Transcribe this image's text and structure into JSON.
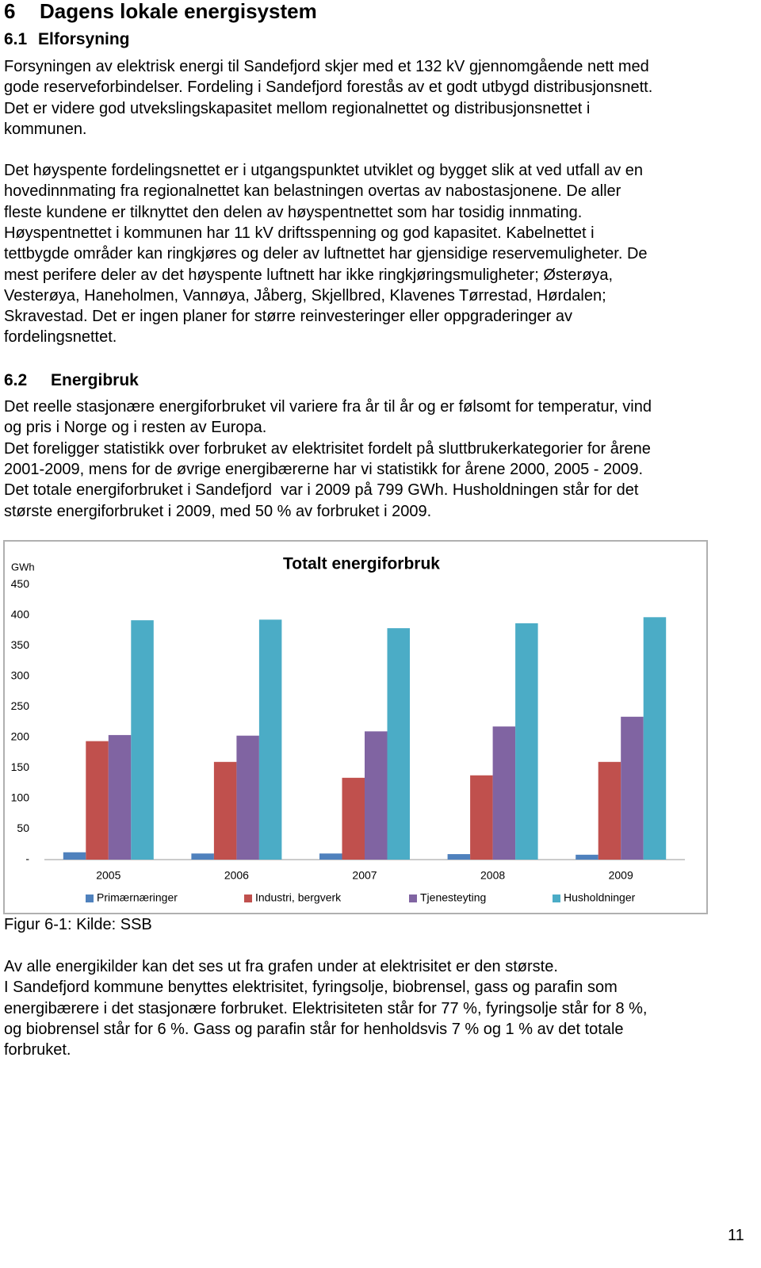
{
  "heading": {
    "number": "6",
    "title": "Dagens lokale energisystem"
  },
  "section_1": {
    "number": "6.1",
    "title": "Elforsyning"
  },
  "paragraphs_1": [
    [
      "Forsyningen av elektrisk energi til Sandefjord skjer med et 132 kV gjennomgående nett med",
      "gode reserveforbindelser. Fordeling i Sandefjord forestås av et godt utbygd distribusjonsnett.",
      "Det er videre god utvekslingskapasitet mellom regionalnettet og distribusjonsnettet i",
      "kommunen."
    ],
    [
      "Det høyspente fordelingsnettet er i utgangspunktet utviklet og bygget slik at ved utfall av en",
      "hovedinnmating fra regionalnettet kan belastningen overtas av nabostasjonene. De aller",
      "fleste kundene er tilknyttet den delen av høyspentnettet som har tosidig innmating.",
      "Høyspentnettet i kommunen har 11 kV driftsspenning og god kapasitet. Kabelnettet i",
      "tettbygde områder kan ringkjøres og deler av luftnettet har gjensidige reservemuligheter. De",
      "mest perifere deler av det høyspente luftnett har ikke ringkjøringsmuligheter; Østerøya,",
      "Vesterøya, Haneholmen, Vannøya, Jåberg, Skjellbred, Klavenes Tørrestad, Hørdalen;",
      "Skravestad. Det er ingen planer for større reinvesteringer eller oppgraderinger av",
      "fordelingsnettet."
    ]
  ],
  "section_2": {
    "number": "6.2",
    "title": "Energibruk"
  },
  "paragraphs_2": [
    [
      "Det reelle stasjonære energiforbruket vil variere fra år til år og er følsomt for temperatur, vind",
      "og pris i Norge og i resten av Europa.",
      "Det foreligger statistikk over forbruket av elektrisitet fordelt på sluttbrukerkategorier for årene",
      "2001-2009, mens for de øvrige energibærerne har vi statistikk for årene 2000, 2005 - 2009.",
      "Det totale energiforbruket i Sandefjord  var i 2009 på 799 GWh. Husholdningen står for det",
      "største energiforbruket i 2009, med 50 % av forbruket i 2009."
    ]
  ],
  "chart_data": {
    "type": "bar",
    "title": "Totalt energiforbruk",
    "y_label": "GWh",
    "categories": [
      "2005",
      "2006",
      "2007",
      "2008",
      "2009"
    ],
    "series": [
      {
        "name": "Primærnæringer",
        "color": "#4f81bd",
        "values": [
          12,
          10,
          10,
          9,
          8
        ]
      },
      {
        "name": "Industri, bergverk",
        "color": "#c0504d",
        "values": [
          194,
          160,
          134,
          138,
          160
        ]
      },
      {
        "name": "Tjenesteyting",
        "color": "#8064a2",
        "values": [
          204,
          203,
          210,
          218,
          234
        ]
      },
      {
        "name": "Husholdninger",
        "color": "#4bacc6",
        "values": [
          392,
          393,
          379,
          387,
          397
        ]
      }
    ],
    "ylim": [
      0,
      450
    ],
    "yticks": [
      {
        "value": 0,
        "label": "-"
      },
      50,
      100,
      150,
      200,
      250,
      300,
      350,
      400,
      450
    ],
    "grid": false,
    "legend": "bottom"
  },
  "caption": "Figur 6-1: Kilde: SSB",
  "paragraphs_3": [
    [
      "Av alle energikilder kan det ses ut fra grafen under at elektrisitet er den største.",
      "I Sandefjord kommune benyttes elektrisitet, fyringsolje, biobrensel, gass og parafin som",
      "energibærere i det stasjonære forbruket. Elektrisiteten står for 77 %, fyringsolje står for 8 %,",
      "og biobrensel står for 6 %. Gass og parafin står for henholdsvis 7 % og 1 % av det totale",
      "forbruket."
    ]
  ],
  "page_number": "11"
}
